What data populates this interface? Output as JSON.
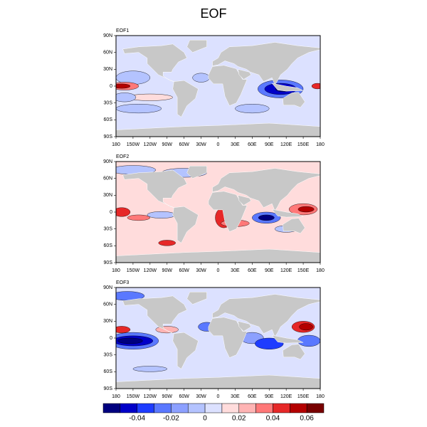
{
  "title": "EOF",
  "panels": [
    {
      "label": "EOF1"
    },
    {
      "label": "EOF2"
    },
    {
      "label": "EOF3"
    }
  ],
  "lat_labels": [
    "90N",
    "60N",
    "30N",
    "0",
    "30S",
    "60S",
    "90S"
  ],
  "lon_labels": [
    "180",
    "150W",
    "120W",
    "90W",
    "60W",
    "30W",
    "0",
    "30E",
    "60E",
    "90E",
    "120E",
    "150E",
    "180"
  ],
  "colorbar": {
    "colors": [
      "#00007f",
      "#0000c8",
      "#1e3cff",
      "#5a78ff",
      "#8ca0ff",
      "#b4c3ff",
      "#dce1ff",
      "#ffdcdc",
      "#ffb4b4",
      "#ff7878",
      "#e62828",
      "#b40000",
      "#780000"
    ],
    "ticks": [
      -0.04,
      -0.02,
      0,
      0.02,
      0.04,
      0.06
    ]
  }
}
